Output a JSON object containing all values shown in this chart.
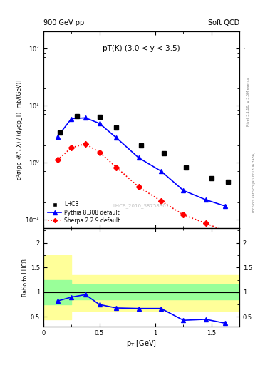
{
  "title_left": "900 GeV pp",
  "title_right": "Soft QCD",
  "annotation": "pT(K) (3.0 < y < 3.5)",
  "watermark": "LHCB_2010_S8758301",
  "ylabel_main": "d²σ(pp→K°_S X) / (dydp_T) [mb/(GeV)]",
  "ylabel_ratio": "Ratio to LHCB",
  "xlabel": "p_T [GeV]",
  "lhcb_x": [
    0.15,
    0.3,
    0.5,
    0.65,
    0.875,
    1.075,
    1.275,
    1.5,
    1.65
  ],
  "lhcb_y": [
    3.3,
    6.5,
    6.3,
    4.0,
    2.0,
    1.45,
    0.82,
    0.52,
    0.45
  ],
  "pythia_x": [
    0.125,
    0.25,
    0.375,
    0.5,
    0.65,
    0.85,
    1.05,
    1.25,
    1.45,
    1.625
  ],
  "pythia_y": [
    2.8,
    5.8,
    6.0,
    4.8,
    2.7,
    1.2,
    0.7,
    0.32,
    0.22,
    0.17
  ],
  "sherpa_x": [
    0.125,
    0.25,
    0.375,
    0.5,
    0.65,
    0.85,
    1.05,
    1.25,
    1.45,
    1.625
  ],
  "sherpa_y": [
    1.1,
    1.8,
    2.1,
    1.5,
    0.82,
    0.37,
    0.21,
    0.12,
    0.085,
    0.062
  ],
  "ratio_pythia_x": [
    0.125,
    0.25,
    0.375,
    0.5,
    0.65,
    0.85,
    1.05,
    1.25,
    1.45,
    1.625
  ],
  "ratio_pythia_y": [
    0.82,
    0.9,
    0.95,
    0.75,
    0.68,
    0.67,
    0.67,
    0.43,
    0.45,
    0.37
  ],
  "ylim_main": [
    0.07,
    200
  ],
  "ylim_ratio": [
    0.3,
    2.3
  ],
  "xlim": [
    0.0,
    1.75
  ],
  "color_lhcb": "black",
  "color_pythia": "blue",
  "color_sherpa": "red",
  "color_yellow": "#ffff99",
  "color_green": "#99ff99",
  "band_x_edges": [
    0.0,
    0.25,
    1.0,
    1.5,
    1.75
  ],
  "yellow_lo": [
    0.45,
    0.62,
    0.62,
    0.62
  ],
  "yellow_hi": [
    1.75,
    1.35,
    1.35,
    1.35
  ],
  "green_lo": [
    0.75,
    0.85,
    0.85,
    0.85
  ],
  "green_hi": [
    1.25,
    1.15,
    1.15,
    1.15
  ]
}
